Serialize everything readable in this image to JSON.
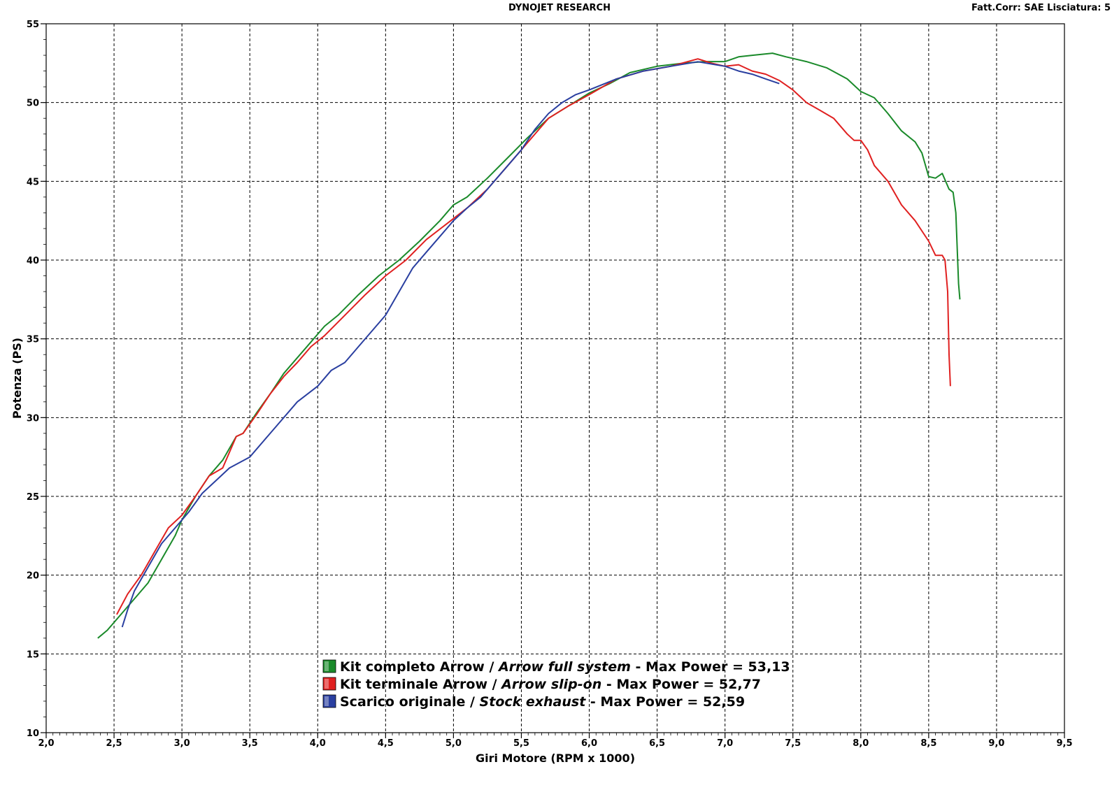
{
  "header": {
    "title": "DYNOJET RESEARCH",
    "right_text": "Fatt.Corr: SAE  Lisciatura: 5"
  },
  "chart_data": {
    "type": "line",
    "title": "",
    "xlabel": "Giri Motore (RPM x 1000)",
    "ylabel": "Potenza (PS)",
    "xlim": [
      2.0,
      9.5
    ],
    "ylim": [
      10,
      55
    ],
    "x_ticks": [
      "2,0",
      "2,5",
      "3,0",
      "3,5",
      "4,0",
      "4,5",
      "5,0",
      "5,5",
      "6,0",
      "6,5",
      "7,0",
      "7,5",
      "8,0",
      "8,5",
      "9,0",
      "9,5"
    ],
    "y_ticks": [
      "10",
      "15",
      "20",
      "25",
      "30",
      "35",
      "40",
      "45",
      "50",
      "55"
    ],
    "grid": true,
    "legend_position": "bottom-center",
    "series": [
      {
        "name": "Kit completo Arrow",
        "name_italic": "Arrow full system",
        "max_label": "Max Power = 53,13",
        "color": "#1a8a2a",
        "x": [
          2.38,
          2.45,
          2.55,
          2.65,
          2.75,
          2.85,
          2.95,
          3.0,
          3.1,
          3.2,
          3.3,
          3.4,
          3.45,
          3.55,
          3.65,
          3.75,
          3.85,
          3.95,
          4.05,
          4.15,
          4.3,
          4.45,
          4.6,
          4.75,
          4.9,
          5.0,
          5.1,
          5.25,
          5.4,
          5.55,
          5.7,
          5.85,
          6.0,
          6.15,
          6.3,
          6.5,
          6.7,
          6.85,
          7.0,
          7.1,
          7.2,
          7.35,
          7.45,
          7.6,
          7.75,
          7.9,
          8.0,
          8.1,
          8.2,
          8.3,
          8.4,
          8.45,
          8.5,
          8.55,
          8.6,
          8.65,
          8.68,
          8.7,
          8.72,
          8.73
        ],
        "y": [
          16.0,
          16.5,
          17.5,
          18.5,
          19.5,
          21.0,
          22.5,
          23.5,
          25.0,
          26.3,
          27.3,
          28.8,
          29.0,
          30.3,
          31.5,
          32.8,
          33.8,
          34.8,
          35.8,
          36.5,
          37.8,
          39.0,
          40.0,
          41.2,
          42.5,
          43.5,
          44.0,
          45.2,
          46.5,
          47.8,
          49.0,
          49.8,
          50.6,
          51.2,
          51.9,
          52.3,
          52.5,
          52.6,
          52.6,
          52.9,
          53.0,
          53.13,
          52.9,
          52.6,
          52.2,
          51.5,
          50.7,
          50.3,
          49.3,
          48.2,
          47.5,
          46.8,
          45.3,
          45.2,
          45.5,
          44.5,
          44.3,
          43.0,
          38.5,
          37.5
        ]
      },
      {
        "name": "Kit terminale Arrow",
        "name_italic": "Arrow slip-on",
        "max_label": "Max Power = 52,77",
        "color": "#e02020",
        "x": [
          2.52,
          2.6,
          2.7,
          2.8,
          2.9,
          3.0,
          3.1,
          3.2,
          3.3,
          3.4,
          3.45,
          3.55,
          3.65,
          3.75,
          3.85,
          3.95,
          4.05,
          4.2,
          4.35,
          4.5,
          4.65,
          4.8,
          4.95,
          5.1,
          5.25,
          5.4,
          5.55,
          5.7,
          5.85,
          6.0,
          6.2,
          6.4,
          6.6,
          6.8,
          6.9,
          7.0,
          7.1,
          7.2,
          7.3,
          7.4,
          7.5,
          7.6,
          7.7,
          7.8,
          7.9,
          7.95,
          8.0,
          8.05,
          8.1,
          8.2,
          8.3,
          8.4,
          8.5,
          8.55,
          8.6,
          8.62,
          8.64,
          8.65,
          8.66
        ],
        "y": [
          17.5,
          18.8,
          20.0,
          21.5,
          23.0,
          23.8,
          25.0,
          26.3,
          26.8,
          28.8,
          29.0,
          30.2,
          31.5,
          32.6,
          33.5,
          34.5,
          35.2,
          36.5,
          37.8,
          39.0,
          40.0,
          41.3,
          42.3,
          43.3,
          44.5,
          46.0,
          47.5,
          49.0,
          49.8,
          50.5,
          51.5,
          52.0,
          52.3,
          52.77,
          52.5,
          52.3,
          52.4,
          52.0,
          51.8,
          51.4,
          50.8,
          50.0,
          49.5,
          49.0,
          48.0,
          47.6,
          47.6,
          47.0,
          46.0,
          45.0,
          43.5,
          42.5,
          41.2,
          40.3,
          40.3,
          40.0,
          38.0,
          34.0,
          32.0
        ]
      },
      {
        "name": "Scarico originale",
        "name_italic": "Stock exhaust",
        "max_label": "Max Power = 52,59",
        "color": "#2a3fa0",
        "x": [
          2.56,
          2.6,
          2.65,
          2.75,
          2.85,
          2.95,
          3.05,
          3.15,
          3.25,
          3.35,
          3.5,
          3.6,
          3.7,
          3.85,
          4.0,
          4.1,
          4.2,
          4.3,
          4.4,
          4.5,
          4.6,
          4.7,
          4.8,
          4.9,
          5.0,
          5.1,
          5.2,
          5.3,
          5.4,
          5.5,
          5.6,
          5.7,
          5.8,
          5.9,
          6.0,
          6.2,
          6.4,
          6.6,
          6.8,
          7.0,
          7.1,
          7.2,
          7.3,
          7.4
        ],
        "y": [
          16.7,
          17.8,
          19.0,
          20.5,
          22.0,
          23.0,
          24.0,
          25.2,
          26.0,
          26.8,
          27.5,
          28.5,
          29.5,
          31.0,
          32.0,
          33.0,
          33.5,
          34.5,
          35.5,
          36.5,
          38.0,
          39.5,
          40.5,
          41.5,
          42.5,
          43.3,
          44.0,
          45.0,
          46.0,
          47.0,
          48.3,
          49.3,
          50.0,
          50.5,
          50.8,
          51.5,
          52.0,
          52.3,
          52.59,
          52.3,
          52.0,
          51.8,
          51.5,
          51.2
        ]
      }
    ]
  }
}
